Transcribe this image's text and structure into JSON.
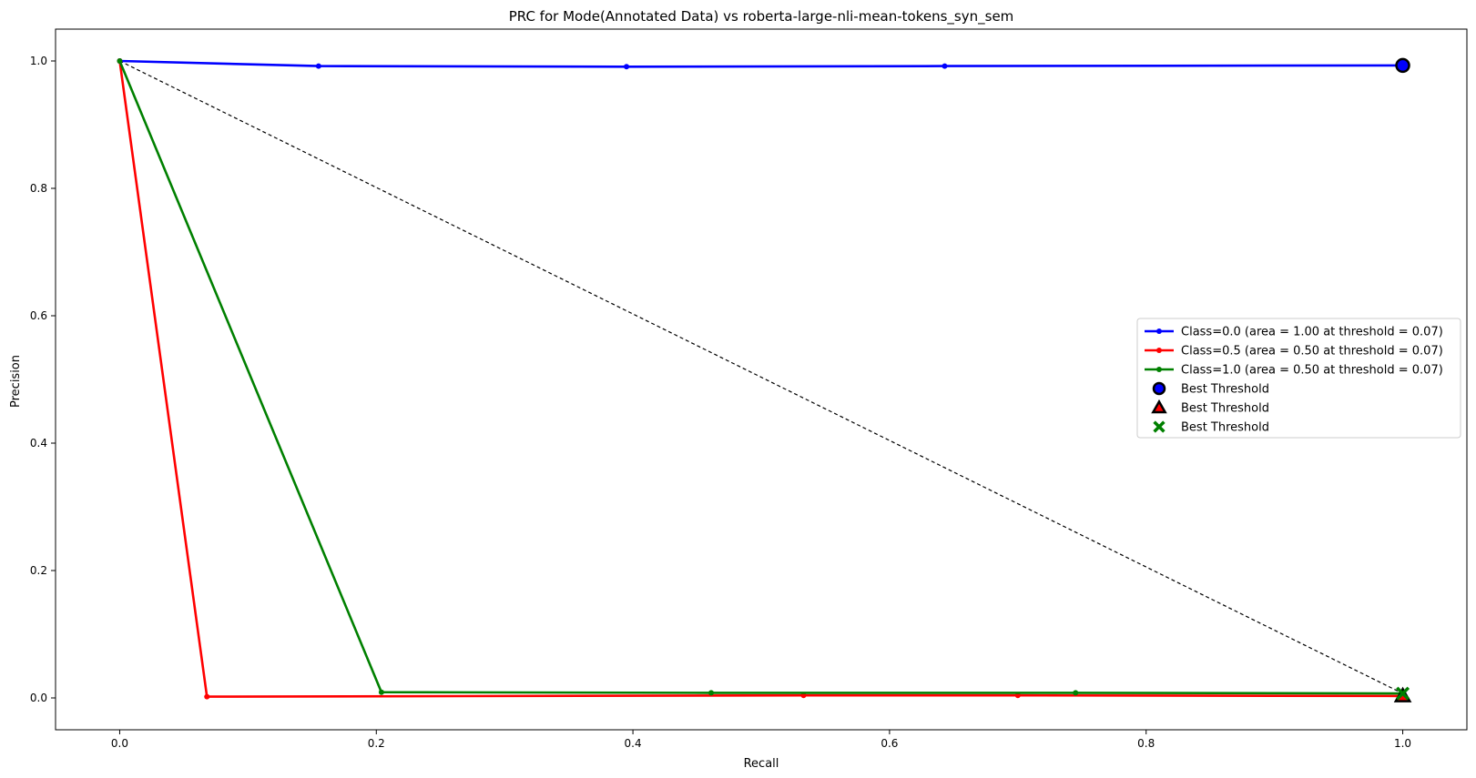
{
  "chart_data": {
    "type": "line",
    "title": "PRC for Mode(Annotated Data) vs roberta-large-nli-mean-tokens_syn_sem",
    "xlabel": "Recall",
    "ylabel": "Precision",
    "xlim": [
      -0.05,
      1.05
    ],
    "ylim": [
      -0.05,
      1.05
    ],
    "xticks": [
      0.0,
      0.2,
      0.4,
      0.6,
      0.8,
      1.0
    ],
    "xtick_labels": [
      "0.0",
      "0.2",
      "0.4",
      "0.6",
      "0.8",
      "1.0"
    ],
    "yticks": [
      0.0,
      0.2,
      0.4,
      0.6,
      0.8,
      1.0
    ],
    "ytick_labels": [
      "0.0",
      "0.2",
      "0.4",
      "0.6",
      "0.8",
      "1.0"
    ],
    "grid": false,
    "legend_position": "center-right",
    "series": [
      {
        "name": "Class=0.0 (area = 1.00 at threshold = 0.07)",
        "color": "#0000ff",
        "x": [
          0.0,
          0.155,
          0.395,
          0.643,
          1.0
        ],
        "y": [
          1.0,
          0.992,
          0.991,
          0.992,
          0.993
        ]
      },
      {
        "name": "Class=0.5 (area = 0.50 at threshold = 0.07)",
        "color": "#ff0000",
        "x": [
          0.0,
          0.068,
          0.533,
          0.7,
          1.0
        ],
        "y": [
          1.0,
          0.002,
          0.004,
          0.004,
          0.003
        ]
      },
      {
        "name": "Class=1.0 (area = 0.50 at threshold = 0.07)",
        "color": "#008000",
        "x": [
          0.0,
          0.204,
          0.461,
          0.745,
          1.0
        ],
        "y": [
          1.0,
          0.009,
          0.008,
          0.008,
          0.007
        ]
      }
    ],
    "best_thresholds": [
      {
        "name": "Best Threshold",
        "marker": "circle",
        "color": "#0000ff",
        "x": 1.0,
        "y": 0.993
      },
      {
        "name": "Best Threshold",
        "marker": "triangle",
        "color": "#ff0000",
        "x": 1.0,
        "y": 0.003
      },
      {
        "name": "Best Threshold",
        "marker": "x",
        "color": "#008000",
        "x": 1.0,
        "y": 0.007
      }
    ],
    "reference_line": {
      "style": "dashed",
      "color": "#000000",
      "x": [
        0.0,
        1.0
      ],
      "y": [
        1.0,
        0.007
      ]
    }
  }
}
